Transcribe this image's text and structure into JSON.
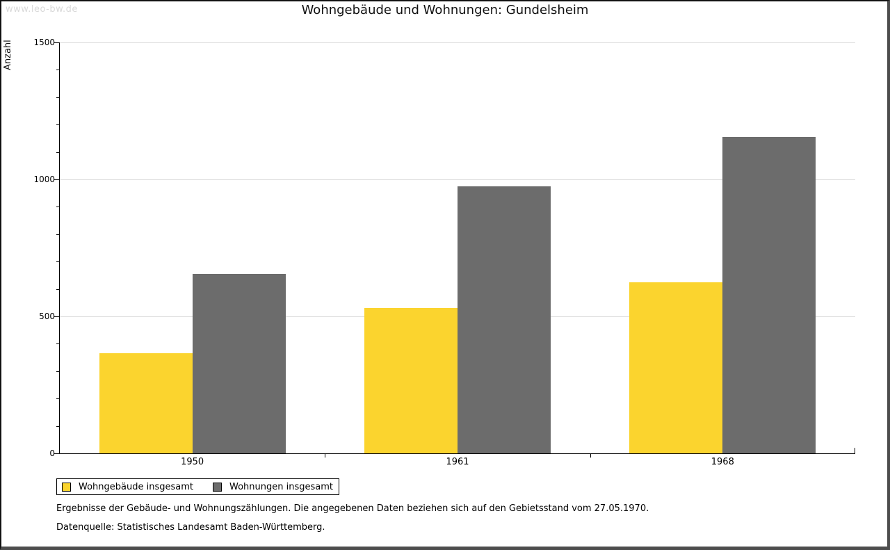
{
  "watermark": "www.leo-bw.de",
  "title": "Wohngebäude und Wohnungen: Gundelsheim",
  "chart_data": {
    "type": "bar",
    "title": "Wohngebäude und Wohnungen: Gundelsheim",
    "ylabel": "Anzahl",
    "xlabel": "",
    "categories": [
      "1950",
      "1961",
      "1968"
    ],
    "series": [
      {
        "name": "Wohngebäude insgesamt",
        "color": "#fbd42e",
        "values": [
          365,
          530,
          625
        ]
      },
      {
        "name": "Wohnungen insgesamt",
        "color": "#6c6c6c",
        "values": [
          655,
          975,
          1155
        ]
      }
    ],
    "ylim": [
      0,
      1500
    ],
    "yticks": [
      0,
      500,
      1000,
      1500
    ],
    "minor_tick_step": 100,
    "grid": true,
    "gridline_color": "#dcdcdc",
    "legend_position": "bottom-left"
  },
  "footnotes": [
    "Ergebnisse der Gebäude- und Wohnungszählungen. Die angegebenen Daten beziehen sich auf den Gebietsstand vom 27.05.1970.",
    "Datenquelle: Statistisches Landesamt Baden-Württemberg."
  ]
}
